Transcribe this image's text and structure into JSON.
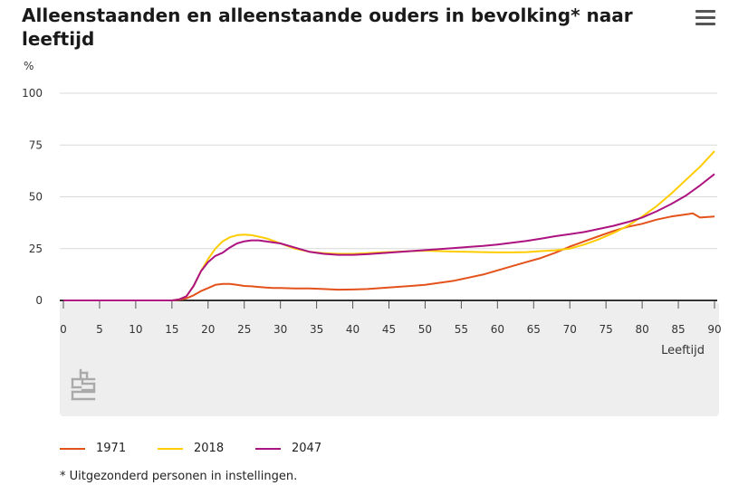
{
  "title": "Alleenstaanden en alleenstaande ouders in bevolking* naar leeftijd",
  "footnote": "* Uitgezonderd personen in instellingen.",
  "colors": {
    "1971": "#e4521b",
    "2018": "#ffcc00",
    "2047": "#ad1380",
    "band": "#eeeeee",
    "grid": "#d9d9d9"
  },
  "icons": {
    "menu": "hamburger-menu-icon",
    "logo": "cbs-logo-icon"
  },
  "chart_data": {
    "type": "line",
    "title": "Alleenstaanden en alleenstaande ouders in bevolking* naar leeftijd",
    "xlabel": "Leeftijd",
    "ylabel": "%",
    "xlim": [
      0,
      90
    ],
    "ylim": [
      0,
      100
    ],
    "x_ticks": [
      0,
      5,
      10,
      15,
      20,
      25,
      30,
      35,
      40,
      45,
      50,
      55,
      60,
      65,
      70,
      75,
      80,
      85,
      90
    ],
    "y_ticks": [
      0,
      25,
      50,
      75,
      100
    ],
    "grid": true,
    "legend_position": "bottom",
    "series": [
      {
        "name": "1971",
        "color": "#e4521b",
        "x": [
          0,
          15,
          16,
          17,
          18,
          19,
          20,
          21,
          22,
          23,
          24,
          25,
          26,
          27,
          28,
          29,
          30,
          32,
          34,
          36,
          38,
          40,
          42,
          44,
          46,
          48,
          50,
          52,
          54,
          56,
          58,
          60,
          62,
          64,
          66,
          68,
          70,
          72,
          74,
          76,
          78,
          80,
          82,
          84,
          86,
          87,
          88,
          90
        ],
        "y": [
          0,
          0,
          0.3,
          1,
          2.5,
          4.5,
          6,
          7.5,
          8,
          8,
          7.5,
          7,
          6.8,
          6.5,
          6.2,
          6,
          6,
          5.8,
          5.8,
          5.5,
          5.2,
          5.3,
          5.5,
          6,
          6.5,
          7,
          7.5,
          8.5,
          9.5,
          11,
          12.5,
          14.5,
          16.5,
          18.5,
          20.5,
          23,
          26,
          28.5,
          31,
          33.5,
          35.5,
          37,
          39,
          40.5,
          41.5,
          42,
          40,
          40.5
        ]
      },
      {
        "name": "2018",
        "color": "#ffcc00",
        "x": [
          0,
          15,
          16,
          17,
          18,
          19,
          20,
          21,
          22,
          23,
          24,
          25,
          26,
          27,
          28,
          29,
          30,
          32,
          34,
          36,
          38,
          40,
          42,
          44,
          46,
          48,
          50,
          52,
          54,
          56,
          58,
          60,
          62,
          64,
          66,
          68,
          70,
          72,
          74,
          76,
          78,
          80,
          82,
          84,
          86,
          88,
          90
        ],
        "y": [
          0,
          0,
          0.5,
          2,
          7,
          14,
          20,
          25,
          28.5,
          30.5,
          31.5,
          31.8,
          31.5,
          30.8,
          30,
          28.8,
          27.5,
          25,
          23.5,
          22.8,
          22.5,
          22.5,
          22.8,
          23.2,
          23.5,
          23.8,
          24,
          23.8,
          23.6,
          23.5,
          23.3,
          23.2,
          23.2,
          23.3,
          23.8,
          24.2,
          25,
          27,
          29.5,
          32.5,
          36,
          40.5,
          45.5,
          51.5,
          58,
          64.5,
          72
        ]
      },
      {
        "name": "2047",
        "color": "#ad1380",
        "x": [
          0,
          15,
          16,
          17,
          18,
          19,
          20,
          21,
          22,
          23,
          24,
          25,
          26,
          27,
          28,
          29,
          30,
          32,
          34,
          36,
          38,
          40,
          42,
          44,
          46,
          48,
          50,
          52,
          54,
          56,
          58,
          60,
          62,
          64,
          66,
          68,
          70,
          72,
          74,
          76,
          78,
          80,
          82,
          84,
          86,
          88,
          90
        ],
        "y": [
          0,
          0,
          0.5,
          2,
          7,
          14,
          18.5,
          21.5,
          23,
          25.5,
          27.5,
          28.5,
          29,
          29,
          28.5,
          28,
          27.5,
          25.5,
          23.5,
          22.5,
          22,
          22,
          22.3,
          22.8,
          23.3,
          23.8,
          24.3,
          24.8,
          25.3,
          25.8,
          26.3,
          27,
          27.8,
          28.7,
          29.8,
          31,
          32,
          33,
          34.5,
          36,
          37.8,
          40,
          43,
          46.5,
          50.5,
          55.5,
          61
        ]
      }
    ]
  }
}
